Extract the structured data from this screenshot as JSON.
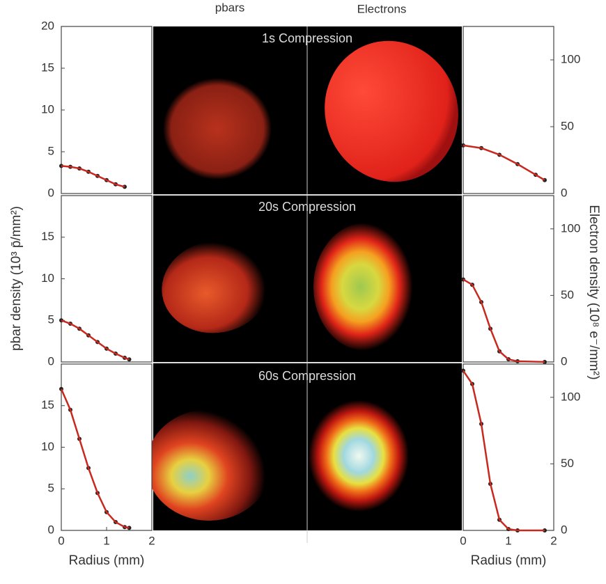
{
  "figure": {
    "headers": [
      "pbars",
      "Electrons"
    ],
    "rows": [
      "1s Compression",
      "20s Compression",
      "60s Compression"
    ],
    "left_ylabel": "pbar density (10³ p̄/mm²)",
    "right_ylabel": "Electron density (10⁸ e⁻/mm²)"
  },
  "chart_data": [
    {
      "type": "line",
      "x": [
        0,
        0.2,
        0.4,
        0.6,
        0.8,
        1.0,
        1.2,
        1.4
      ],
      "values": [
        3.3,
        3.2,
        3.0,
        2.6,
        2.1,
        1.6,
        1.1,
        0.8
      ],
      "color": "#c8281e",
      "xlim": [
        0,
        2
      ],
      "ylim": [
        0,
        20
      ],
      "yticks": [
        0,
        5,
        10,
        15,
        20
      ]
    },
    {
      "type": "line",
      "x": [
        0,
        0.2,
        0.4,
        0.6,
        0.8,
        1.0,
        1.2,
        1.4,
        1.5
      ],
      "values": [
        5,
        4.6,
        4.0,
        3.2,
        2.4,
        1.6,
        1.0,
        0.5,
        0.3
      ],
      "color": "#c8281e",
      "xlim": [
        0,
        2
      ],
      "ylim": [
        0,
        20
      ],
      "yticks": [
        0,
        5,
        10,
        15
      ]
    },
    {
      "type": "line",
      "x": [
        0,
        0.2,
        0.4,
        0.6,
        0.8,
        1.0,
        1.2,
        1.4,
        1.5
      ],
      "values": [
        17,
        14.5,
        11,
        7.5,
        4.5,
        2.2,
        1.0,
        0.4,
        0.3
      ],
      "color": "#c8281e",
      "xlim": [
        0,
        2
      ],
      "ylim": [
        0,
        20
      ],
      "yticks": [
        0,
        5,
        10,
        15
      ],
      "xticks": [
        0,
        1,
        2
      ],
      "xlabel": "Radius (mm)"
    },
    {
      "type": "line",
      "x": [
        0,
        0.4,
        0.8,
        1.2,
        1.6,
        1.8
      ],
      "values": [
        36,
        34,
        29,
        22,
        14,
        10
      ],
      "color": "#c8281e",
      "xlim": [
        0,
        2
      ],
      "ylim": [
        0,
        125
      ],
      "yticks": [
        0,
        50,
        100
      ]
    },
    {
      "type": "line",
      "x": [
        0,
        0.2,
        0.4,
        0.6,
        0.8,
        1.0,
        1.2,
        1.8
      ],
      "values": [
        62,
        58,
        45,
        25,
        8,
        2,
        0.5,
        0
      ],
      "color": "#c8281e",
      "xlim": [
        0,
        2
      ],
      "ylim": [
        0,
        125
      ],
      "yticks": [
        0,
        50,
        100
      ]
    },
    {
      "type": "line",
      "x": [
        0,
        0.2,
        0.4,
        0.6,
        0.8,
        1.0,
        1.2,
        1.8
      ],
      "values": [
        120,
        110,
        80,
        35,
        8,
        1,
        0,
        0
      ],
      "color": "#c8281e",
      "xlim": [
        0,
        2
      ],
      "ylim": [
        0,
        125
      ],
      "yticks": [
        0,
        50,
        100
      ],
      "xticks": [
        0,
        1,
        2
      ],
      "xlabel": "Radius (mm)"
    }
  ]
}
